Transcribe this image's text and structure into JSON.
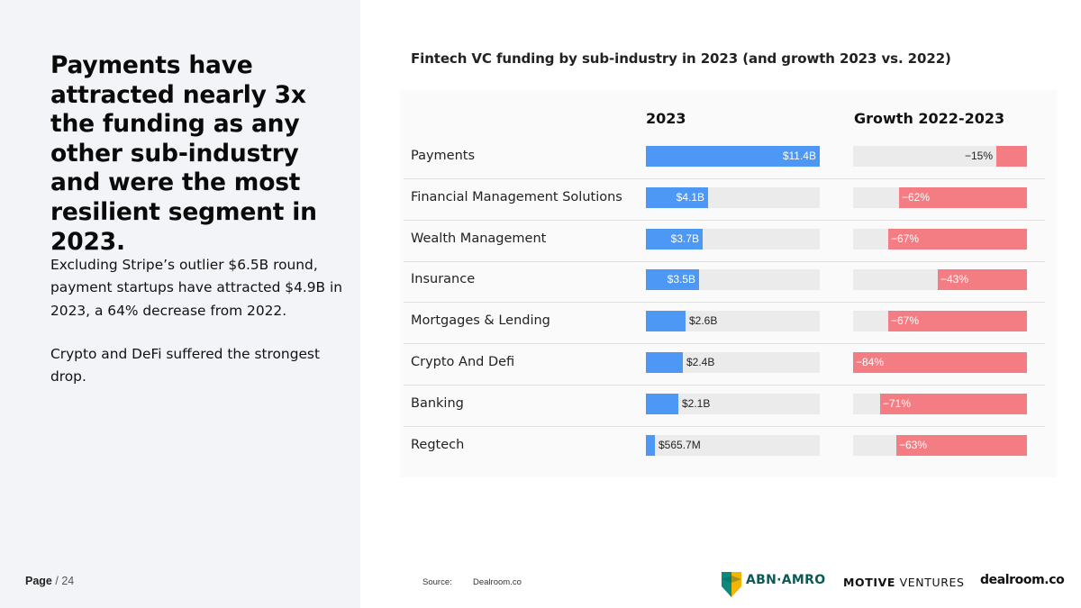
{
  "headline": "Payments have attracted nearly 3x the funding as any other sub-industry and were the most resilient segment in 2023.",
  "paragraph_1": "Excluding Stripe’s outlier $6.5B round, payment startups have attracted $4.9B in 2023, a 64% decrease from 2022.",
  "paragraph_2": "Crypto and DeFi suffered the strongest drop.",
  "page": {
    "label": "Page",
    "total": "/ 24"
  },
  "source": {
    "label": "Source:",
    "value": "Dealroom.co"
  },
  "logos": {
    "abn": "ABN·AMRO",
    "motive_bold": "MOTIVE",
    "motive_rest": " VENTURES",
    "dealroom": "dealroom.co"
  },
  "colors": {
    "funding_bar": "#4d97f5",
    "growth_bar": "#f47d83",
    "track": "#ebebeb",
    "left_panel": "#f3f4f8"
  },
  "chart_data": {
    "type": "bar",
    "title": "Fintech VC funding by sub-industry in 2023 (and growth 2023 vs. 2022)",
    "column_headers": [
      "2023",
      "Growth 2022-2023"
    ],
    "categories": [
      "Payments",
      "Financial Management Solutions",
      "Wealth Management",
      "Insurance",
      "Mortgages & Lending",
      "Crypto And Defi",
      "Banking",
      "Regtech"
    ],
    "series": [
      {
        "name": "2023",
        "unit": "USD billions",
        "values": [
          11.4,
          4.1,
          3.7,
          3.5,
          2.6,
          2.4,
          2.1,
          0.5657
        ],
        "labels": [
          "$11.4B",
          "$4.1B",
          "$3.7B",
          "$3.5B",
          "$2.6B",
          "$2.4B",
          "$2.1B",
          "$565.7M"
        ]
      },
      {
        "name": "Growth 2022-2023",
        "unit": "percent",
        "values": [
          -15,
          -62,
          -67,
          -43,
          -67,
          -84,
          -71,
          -63
        ],
        "labels": [
          "−15%",
          "−62%",
          "−67%",
          "−43%",
          "−67%",
          "−84%",
          "−71%",
          "−63%"
        ]
      }
    ]
  }
}
